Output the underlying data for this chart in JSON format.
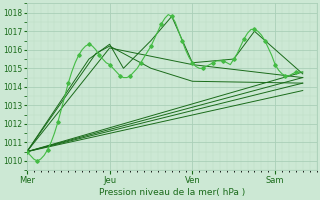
{
  "title": "",
  "xlabel": "Pression niveau de la mer( hPa )",
  "background_color": "#cce8d4",
  "plot_bg_color": "#cce8d4",
  "grid_major_color": "#aacfb8",
  "grid_minor_color": "#bbdcc5",
  "line_dark": "#1a6b1a",
  "line_light": "#44bb44",
  "ylim": [
    1009.5,
    1018.5
  ],
  "xlim": [
    0,
    84
  ],
  "yticks": [
    1010,
    1011,
    1012,
    1013,
    1014,
    1015,
    1016,
    1017,
    1018
  ],
  "xtick_positions": [
    0,
    24,
    48,
    72
  ],
  "xtick_labels": [
    "Mer",
    "Jeu",
    "Ven",
    "Sam"
  ],
  "detail_line": [
    0,
    1010.5,
    1,
    1010.3,
    2,
    1010.1,
    3,
    1010.0,
    4,
    1010.1,
    5,
    1010.3,
    6,
    1010.6,
    7,
    1011.0,
    8,
    1011.5,
    9,
    1012.1,
    10,
    1012.8,
    11,
    1013.5,
    12,
    1014.2,
    13,
    1014.8,
    14,
    1015.3,
    15,
    1015.7,
    16,
    1016.0,
    17,
    1016.2,
    18,
    1016.3,
    19,
    1016.2,
    20,
    1016.0,
    21,
    1015.7,
    22,
    1015.5,
    23,
    1015.3,
    24,
    1015.2,
    25,
    1015.0,
    26,
    1014.8,
    27,
    1014.6,
    28,
    1014.5,
    29,
    1014.5,
    30,
    1014.6,
    31,
    1014.8,
    32,
    1015.0,
    33,
    1015.3,
    34,
    1015.6,
    35,
    1015.9,
    36,
    1016.2,
    37,
    1016.6,
    38,
    1017.0,
    39,
    1017.4,
    40,
    1017.7,
    41,
    1017.9,
    42,
    1017.8,
    43,
    1017.5,
    44,
    1017.0,
    45,
    1016.5,
    46,
    1016.0,
    47,
    1015.6,
    48,
    1015.3,
    49,
    1015.1,
    50,
    1015.0,
    51,
    1015.0,
    52,
    1015.1,
    53,
    1015.2,
    54,
    1015.3,
    55,
    1015.4,
    56,
    1015.4,
    57,
    1015.4,
    58,
    1015.3,
    59,
    1015.2,
    60,
    1015.5,
    61,
    1015.8,
    62,
    1016.2,
    63,
    1016.6,
    64,
    1016.9,
    65,
    1017.1,
    66,
    1017.1,
    67,
    1017.0,
    68,
    1016.8,
    69,
    1016.5,
    70,
    1016.1,
    71,
    1015.7,
    72,
    1015.2,
    73,
    1014.9,
    74,
    1014.7,
    75,
    1014.6,
    76,
    1014.6,
    77,
    1014.7,
    78,
    1014.8,
    79,
    1014.8,
    80,
    1014.8
  ],
  "ensemble_lines": [
    [
      [
        0,
        1010.5
      ],
      [
        80,
        1014.8
      ]
    ],
    [
      [
        0,
        1010.5
      ],
      [
        80,
        1014.5
      ]
    ],
    [
      [
        0,
        1010.5
      ],
      [
        80,
        1014.2
      ]
    ],
    [
      [
        0,
        1010.5
      ],
      [
        80,
        1013.8
      ]
    ],
    [
      [
        0,
        1010.5
      ],
      [
        24,
        1016.1
      ],
      [
        48,
        1015.2
      ],
      [
        80,
        1014.5
      ]
    ],
    [
      [
        0,
        1010.5
      ],
      [
        20,
        1015.8
      ],
      [
        24,
        1016.2
      ],
      [
        36,
        1015.0
      ],
      [
        48,
        1014.3
      ],
      [
        80,
        1014.2
      ]
    ],
    [
      [
        0,
        1010.5
      ],
      [
        18,
        1015.5
      ],
      [
        24,
        1016.3
      ],
      [
        28,
        1015.0
      ],
      [
        36,
        1016.5
      ],
      [
        42,
        1017.8
      ],
      [
        48,
        1015.3
      ],
      [
        60,
        1015.5
      ],
      [
        66,
        1017.0
      ],
      [
        80,
        1014.7
      ]
    ]
  ]
}
